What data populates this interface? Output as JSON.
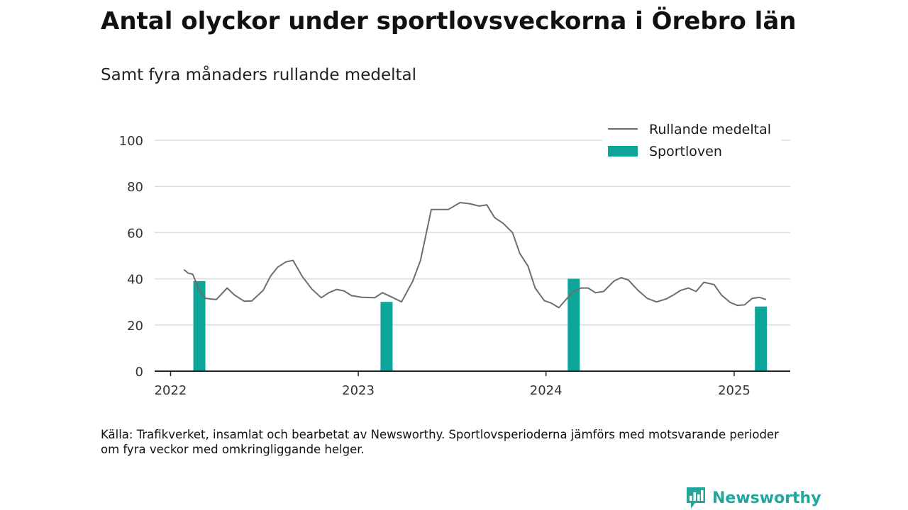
{
  "title": "Antal olyckor under sportlovsveckorna i Örebro län",
  "subtitle": "Samt fyra månaders rullande medeltal",
  "source": "Källa: Trafikverket, insamlat och bearbetat av Newsworthy. Sportlovsperioderna jämförs med motsvarande perioder om fyra veckor med omkringliggande helger.",
  "brand": {
    "name": "Newsworthy",
    "icon": "newsworthy-logo-icon",
    "color": "#23a69b"
  },
  "colors": {
    "line": "#6e6e6e",
    "bar": "#0ea59a",
    "grid": "#dddddd",
    "axis": "#222222"
  },
  "chart_data": {
    "type": "bar",
    "x_axis_type": "date",
    "xlim": [
      "2021-12-01",
      "2025-04-20"
    ],
    "ylim": [
      0,
      100
    ],
    "yticks": [
      0,
      20,
      40,
      60,
      80,
      100
    ],
    "xticks": [
      {
        "label": "2022",
        "date": "2022-01-01"
      },
      {
        "label": "2023",
        "date": "2023-01-01"
      },
      {
        "label": "2024",
        "date": "2024-01-01"
      },
      {
        "label": "2025",
        "date": "2025-01-01"
      }
    ],
    "grid": true,
    "legend_position": "top-right",
    "series": [
      {
        "name": "Rullande medeltal",
        "type": "line",
        "points": [
          [
            "2022-01-27",
            44
          ],
          [
            "2022-02-04",
            42.5
          ],
          [
            "2022-02-13",
            42
          ],
          [
            "2022-02-26",
            35
          ],
          [
            "2022-03-10",
            31.5
          ],
          [
            "2022-03-31",
            31
          ],
          [
            "2022-04-21",
            36
          ],
          [
            "2022-05-05",
            33
          ],
          [
            "2022-05-24",
            30.3
          ],
          [
            "2022-06-08",
            30.4
          ],
          [
            "2022-06-30",
            35
          ],
          [
            "2022-07-14",
            41
          ],
          [
            "2022-07-28",
            45
          ],
          [
            "2022-08-13",
            47.3
          ],
          [
            "2022-08-27",
            48
          ],
          [
            "2022-09-14",
            41
          ],
          [
            "2022-10-03",
            35.5
          ],
          [
            "2022-10-21",
            31.8
          ],
          [
            "2022-11-05",
            34
          ],
          [
            "2022-11-20",
            35.4
          ],
          [
            "2022-12-04",
            34.8
          ],
          [
            "2022-12-19",
            32.7
          ],
          [
            "2023-01-08",
            32
          ],
          [
            "2023-02-02",
            31.8
          ],
          [
            "2023-02-17",
            34
          ],
          [
            "2023-03-08",
            32
          ],
          [
            "2023-03-26",
            30
          ],
          [
            "2023-04-17",
            39
          ],
          [
            "2023-05-02",
            48
          ],
          [
            "2023-05-23",
            70
          ],
          [
            "2023-06-25",
            70
          ],
          [
            "2023-07-18",
            73
          ],
          [
            "2023-08-06",
            72.5
          ],
          [
            "2023-08-24",
            71.5
          ],
          [
            "2023-09-08",
            72
          ],
          [
            "2023-09-23",
            66.5
          ],
          [
            "2023-10-10",
            64
          ],
          [
            "2023-10-28",
            60
          ],
          [
            "2023-11-11",
            51
          ],
          [
            "2023-11-27",
            45.5
          ],
          [
            "2023-12-11",
            36
          ],
          [
            "2023-12-29",
            30.5
          ],
          [
            "2024-01-11",
            29.5
          ],
          [
            "2024-01-26",
            27.5
          ],
          [
            "2024-02-09",
            31
          ],
          [
            "2024-02-23",
            34.5
          ],
          [
            "2024-03-09",
            36
          ],
          [
            "2024-03-23",
            36
          ],
          [
            "2024-04-06",
            34
          ],
          [
            "2024-04-22",
            34.5
          ],
          [
            "2024-05-12",
            39
          ],
          [
            "2024-05-26",
            40.5
          ],
          [
            "2024-06-09",
            39.5
          ],
          [
            "2024-06-28",
            35
          ],
          [
            "2024-07-16",
            31.5
          ],
          [
            "2024-08-03",
            30
          ],
          [
            "2024-08-22",
            31.3
          ],
          [
            "2024-09-05",
            33
          ],
          [
            "2024-09-19",
            35
          ],
          [
            "2024-10-04",
            36
          ],
          [
            "2024-10-19",
            34.5
          ],
          [
            "2024-11-03",
            38.5
          ],
          [
            "2024-11-23",
            37.5
          ],
          [
            "2024-12-07",
            33
          ],
          [
            "2024-12-24",
            29.8
          ],
          [
            "2025-01-07",
            28.5
          ],
          [
            "2025-01-21",
            28.7
          ],
          [
            "2025-02-05",
            31.5
          ],
          [
            "2025-02-19",
            32
          ],
          [
            "2025-03-04",
            31
          ]
        ]
      },
      {
        "name": "Sportloven",
        "type": "bar",
        "points": [
          [
            "2022-02-26",
            39
          ],
          [
            "2023-02-25",
            30
          ],
          [
            "2024-02-24",
            40
          ],
          [
            "2025-02-22",
            28
          ]
        ]
      }
    ]
  }
}
